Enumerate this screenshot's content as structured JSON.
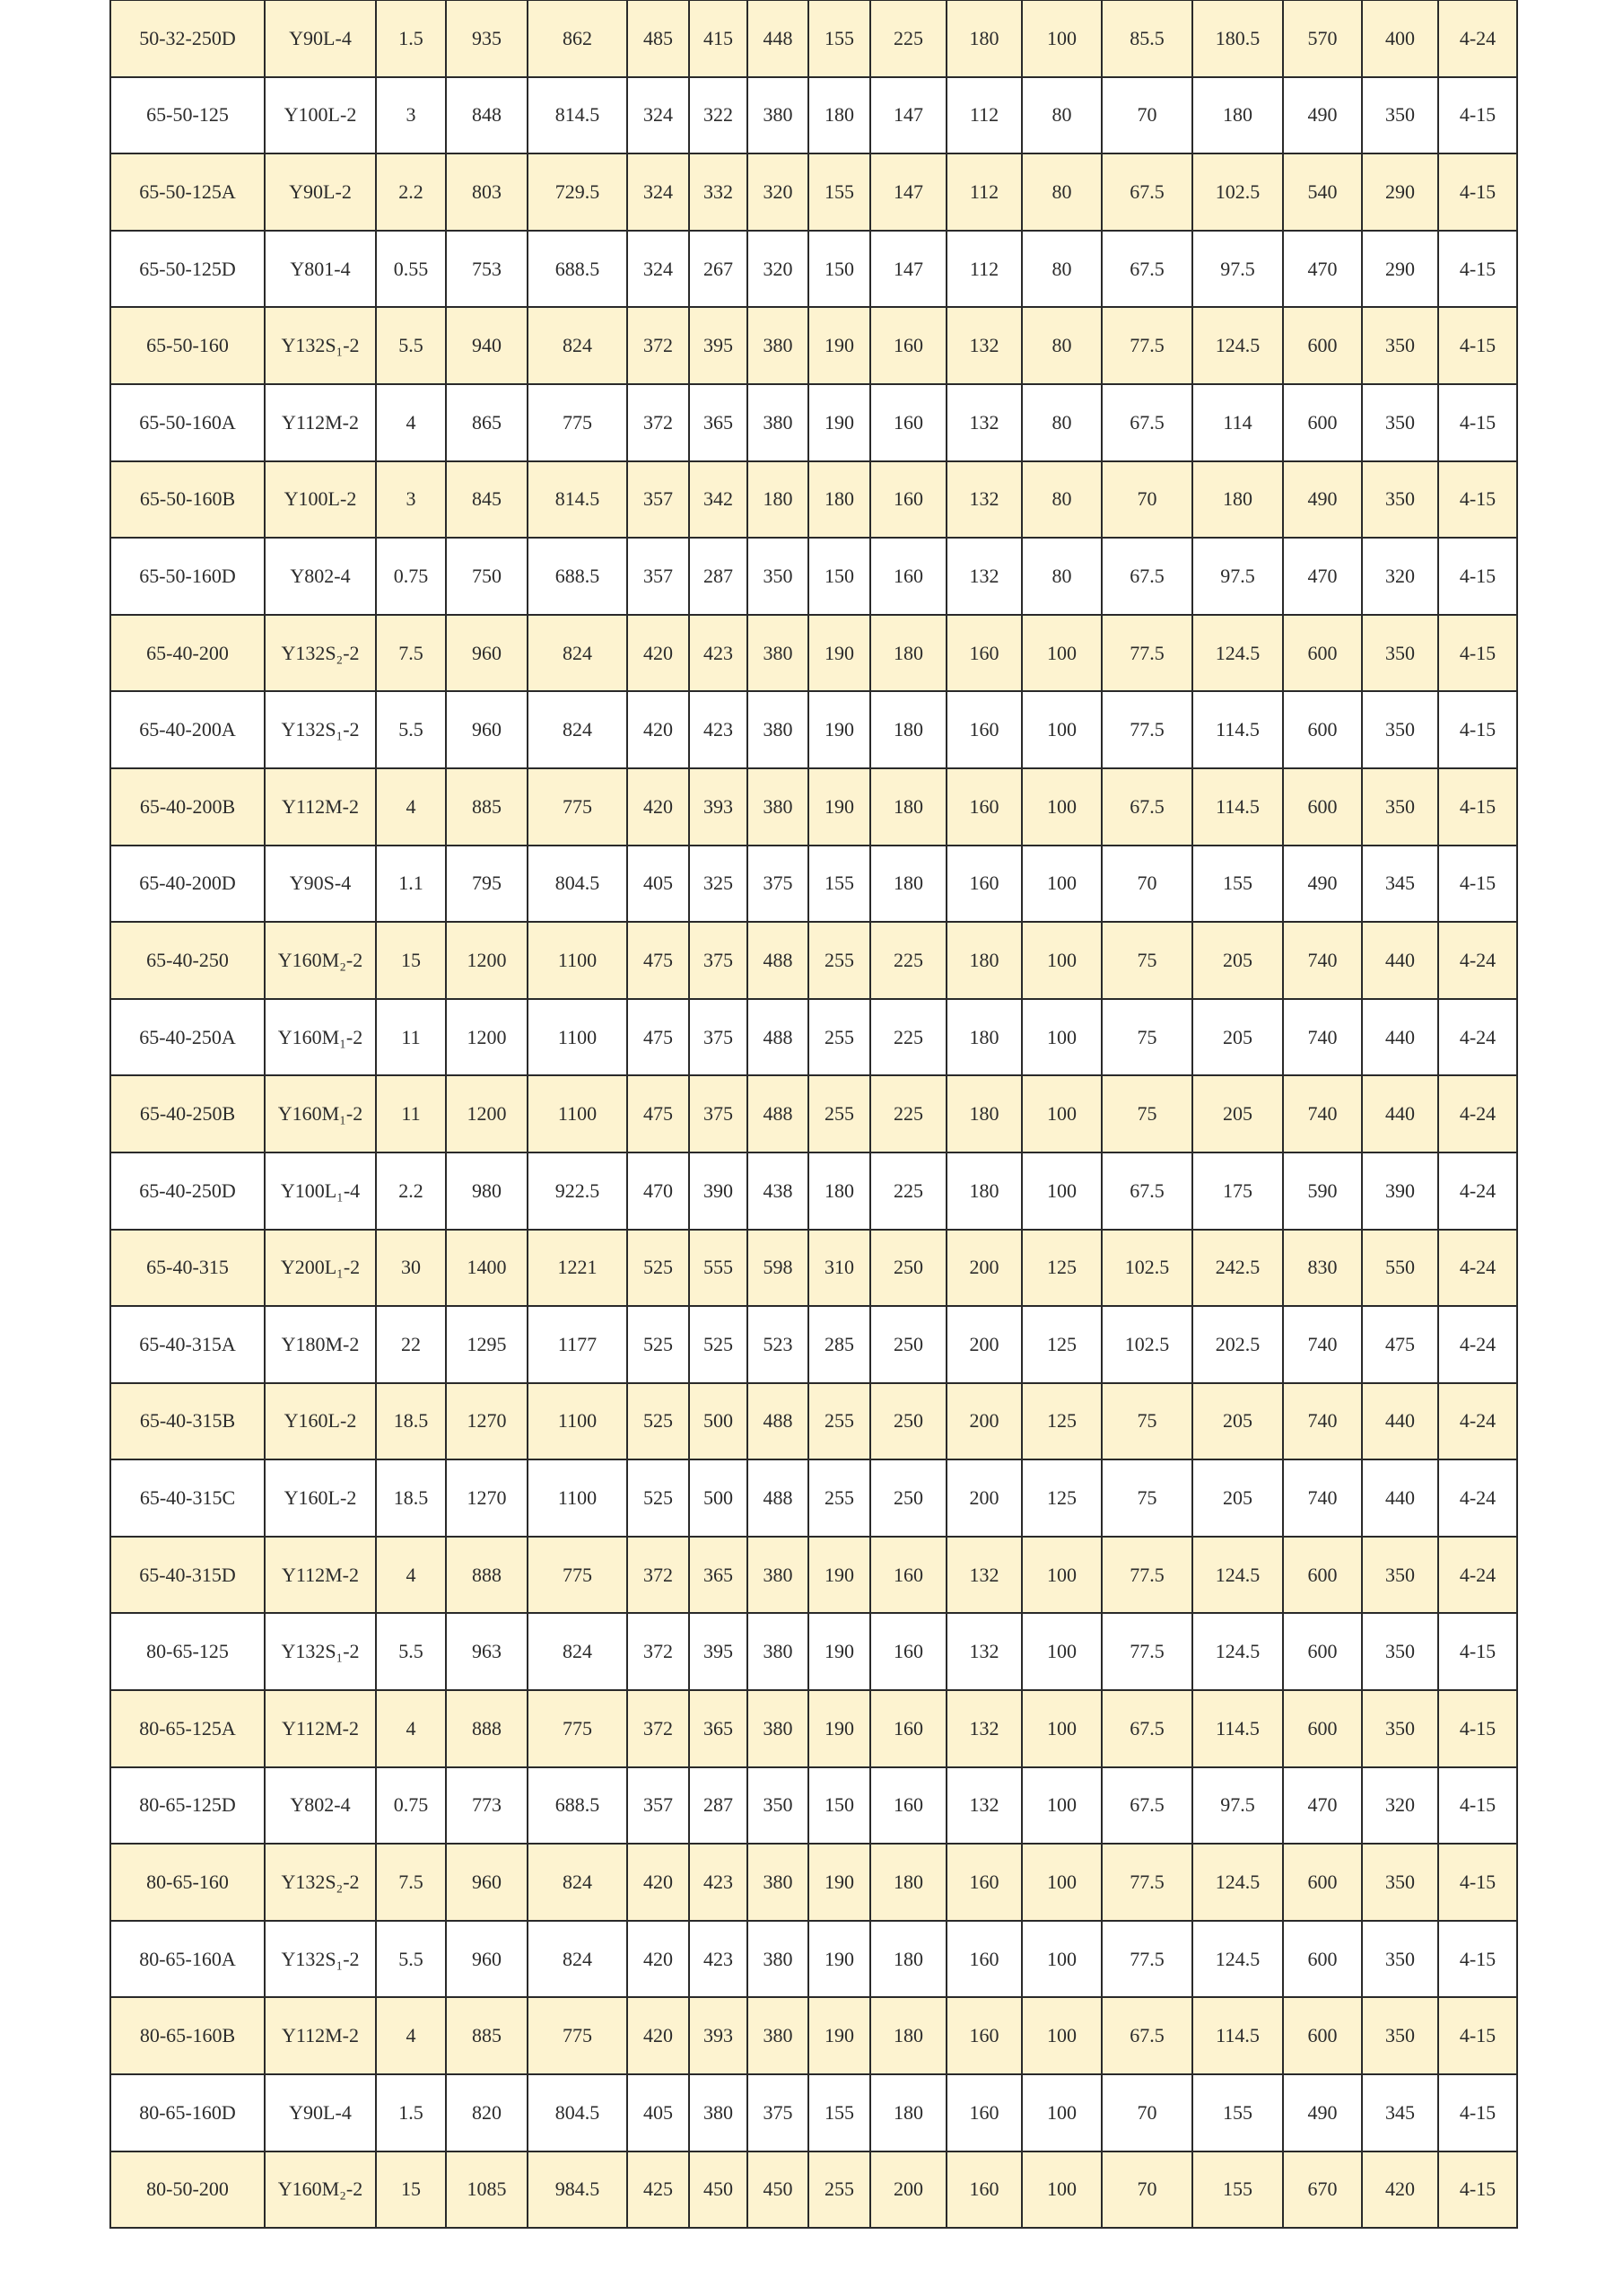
{
  "colors": {
    "highlight_row": "#fdf3d0",
    "plain_row": "#ffffff",
    "border": "#2a2a2a"
  },
  "table": {
    "rows": [
      {
        "highlight": true,
        "cells": [
          "50-32-250D",
          "Y90L-4",
          "1.5",
          "935",
          "862",
          "485",
          "415",
          "448",
          "155",
          "225",
          "180",
          "100",
          "85.5",
          "180.5",
          "570",
          "400",
          "4-24"
        ]
      },
      {
        "highlight": false,
        "cells": [
          "65-50-125",
          "Y100L-2",
          "3",
          "848",
          "814.5",
          "324",
          "322",
          "380",
          "180",
          "147",
          "112",
          "80",
          "70",
          "180",
          "490",
          "350",
          "4-15"
        ]
      },
      {
        "highlight": true,
        "cells": [
          "65-50-125A",
          "Y90L-2",
          "2.2",
          "803",
          "729.5",
          "324",
          "332",
          "320",
          "155",
          "147",
          "112",
          "80",
          "67.5",
          "102.5",
          "540",
          "290",
          "4-15"
        ]
      },
      {
        "highlight": false,
        "cells": [
          "65-50-125D",
          "Y801-4",
          "0.55",
          "753",
          "688.5",
          "324",
          "267",
          "320",
          "150",
          "147",
          "112",
          "80",
          "67.5",
          "97.5",
          "470",
          "290",
          "4-15"
        ]
      },
      {
        "highlight": true,
        "cells": [
          "65-50-160",
          "Y132S₁-2",
          "5.5",
          "940",
          "824",
          "372",
          "395",
          "380",
          "190",
          "160",
          "132",
          "80",
          "77.5",
          "124.5",
          "600",
          "350",
          "4-15"
        ]
      },
      {
        "highlight": false,
        "cells": [
          "65-50-160A",
          "Y112M-2",
          "4",
          "865",
          "775",
          "372",
          "365",
          "380",
          "190",
          "160",
          "132",
          "80",
          "67.5",
          "114",
          "600",
          "350",
          "4-15"
        ]
      },
      {
        "highlight": true,
        "cells": [
          "65-50-160B",
          "Y100L-2",
          "3",
          "845",
          "814.5",
          "357",
          "342",
          "180",
          "180",
          "160",
          "132",
          "80",
          "70",
          "180",
          "490",
          "350",
          "4-15"
        ]
      },
      {
        "highlight": false,
        "cells": [
          "65-50-160D",
          "Y802-4",
          "0.75",
          "750",
          "688.5",
          "357",
          "287",
          "350",
          "150",
          "160",
          "132",
          "80",
          "67.5",
          "97.5",
          "470",
          "320",
          "4-15"
        ]
      },
      {
        "highlight": true,
        "cells": [
          "65-40-200",
          "Y132S₂-2",
          "7.5",
          "960",
          "824",
          "420",
          "423",
          "380",
          "190",
          "180",
          "160",
          "100",
          "77.5",
          "124.5",
          "600",
          "350",
          "4-15"
        ]
      },
      {
        "highlight": false,
        "cells": [
          "65-40-200A",
          "Y132S₁-2",
          "5.5",
          "960",
          "824",
          "420",
          "423",
          "380",
          "190",
          "180",
          "160",
          "100",
          "77.5",
          "114.5",
          "600",
          "350",
          "4-15"
        ]
      },
      {
        "highlight": true,
        "cells": [
          "65-40-200B",
          "Y112M-2",
          "4",
          "885",
          "775",
          "420",
          "393",
          "380",
          "190",
          "180",
          "160",
          "100",
          "67.5",
          "114.5",
          "600",
          "350",
          "4-15"
        ]
      },
      {
        "highlight": false,
        "cells": [
          "65-40-200D",
          "Y90S-4",
          "1.1",
          "795",
          "804.5",
          "405",
          "325",
          "375",
          "155",
          "180",
          "160",
          "100",
          "70",
          "155",
          "490",
          "345",
          "4-15"
        ]
      },
      {
        "highlight": true,
        "cells": [
          "65-40-250",
          "Y160M₂-2",
          "15",
          "1200",
          "1100",
          "475",
          "375",
          "488",
          "255",
          "225",
          "180",
          "100",
          "75",
          "205",
          "740",
          "440",
          "4-24"
        ]
      },
      {
        "highlight": false,
        "cells": [
          "65-40-250A",
          "Y160M₁-2",
          "11",
          "1200",
          "1100",
          "475",
          "375",
          "488",
          "255",
          "225",
          "180",
          "100",
          "75",
          "205",
          "740",
          "440",
          "4-24"
        ]
      },
      {
        "highlight": true,
        "cells": [
          "65-40-250B",
          "Y160M₁-2",
          "11",
          "1200",
          "1100",
          "475",
          "375",
          "488",
          "255",
          "225",
          "180",
          "100",
          "75",
          "205",
          "740",
          "440",
          "4-24"
        ]
      },
      {
        "highlight": false,
        "cells": [
          "65-40-250D",
          "Y100L₁-4",
          "2.2",
          "980",
          "922.5",
          "470",
          "390",
          "438",
          "180",
          "225",
          "180",
          "100",
          "67.5",
          "175",
          "590",
          "390",
          "4-24"
        ]
      },
      {
        "highlight": true,
        "cells": [
          "65-40-315",
          "Y200L₁-2",
          "30",
          "1400",
          "1221",
          "525",
          "555",
          "598",
          "310",
          "250",
          "200",
          "125",
          "102.5",
          "242.5",
          "830",
          "550",
          "4-24"
        ]
      },
      {
        "highlight": false,
        "cells": [
          "65-40-315A",
          "Y180M-2",
          "22",
          "1295",
          "1177",
          "525",
          "525",
          "523",
          "285",
          "250",
          "200",
          "125",
          "102.5",
          "202.5",
          "740",
          "475",
          "4-24"
        ]
      },
      {
        "highlight": true,
        "cells": [
          "65-40-315B",
          "Y160L-2",
          "18.5",
          "1270",
          "1100",
          "525",
          "500",
          "488",
          "255",
          "250",
          "200",
          "125",
          "75",
          "205",
          "740",
          "440",
          "4-24"
        ]
      },
      {
        "highlight": false,
        "cells": [
          "65-40-315C",
          "Y160L-2",
          "18.5",
          "1270",
          "1100",
          "525",
          "500",
          "488",
          "255",
          "250",
          "200",
          "125",
          "75",
          "205",
          "740",
          "440",
          "4-24"
        ]
      },
      {
        "highlight": true,
        "cells": [
          "65-40-315D",
          "Y112M-2",
          "4",
          "888",
          "775",
          "372",
          "365",
          "380",
          "190",
          "160",
          "132",
          "100",
          "77.5",
          "124.5",
          "600",
          "350",
          "4-24"
        ]
      },
      {
        "highlight": false,
        "cells": [
          "80-65-125",
          "Y132S₁-2",
          "5.5",
          "963",
          "824",
          "372",
          "395",
          "380",
          "190",
          "160",
          "132",
          "100",
          "77.5",
          "124.5",
          "600",
          "350",
          "4-15"
        ]
      },
      {
        "highlight": true,
        "cells": [
          "80-65-125A",
          "Y112M-2",
          "4",
          "888",
          "775",
          "372",
          "365",
          "380",
          "190",
          "160",
          "132",
          "100",
          "67.5",
          "114.5",
          "600",
          "350",
          "4-15"
        ]
      },
      {
        "highlight": false,
        "cells": [
          "80-65-125D",
          "Y802-4",
          "0.75",
          "773",
          "688.5",
          "357",
          "287",
          "350",
          "150",
          "160",
          "132",
          "100",
          "67.5",
          "97.5",
          "470",
          "320",
          "4-15"
        ]
      },
      {
        "highlight": true,
        "cells": [
          "80-65-160",
          "Y132S₂-2",
          "7.5",
          "960",
          "824",
          "420",
          "423",
          "380",
          "190",
          "180",
          "160",
          "100",
          "77.5",
          "124.5",
          "600",
          "350",
          "4-15"
        ]
      },
      {
        "highlight": false,
        "cells": [
          "80-65-160A",
          "Y132S₁-2",
          "5.5",
          "960",
          "824",
          "420",
          "423",
          "380",
          "190",
          "180",
          "160",
          "100",
          "77.5",
          "124.5",
          "600",
          "350",
          "4-15"
        ]
      },
      {
        "highlight": true,
        "cells": [
          "80-65-160B",
          "Y112M-2",
          "4",
          "885",
          "775",
          "420",
          "393",
          "380",
          "190",
          "180",
          "160",
          "100",
          "67.5",
          "114.5",
          "600",
          "350",
          "4-15"
        ]
      },
      {
        "highlight": false,
        "cells": [
          "80-65-160D",
          "Y90L-4",
          "1.5",
          "820",
          "804.5",
          "405",
          "380",
          "375",
          "155",
          "180",
          "160",
          "100",
          "70",
          "155",
          "490",
          "345",
          "4-15"
        ]
      },
      {
        "highlight": true,
        "cells": [
          "80-50-200",
          "Y160M₂-2",
          "15",
          "1085",
          "984.5",
          "425",
          "450",
          "450",
          "255",
          "200",
          "160",
          "100",
          "70",
          "155",
          "670",
          "420",
          "4-15"
        ]
      }
    ]
  }
}
